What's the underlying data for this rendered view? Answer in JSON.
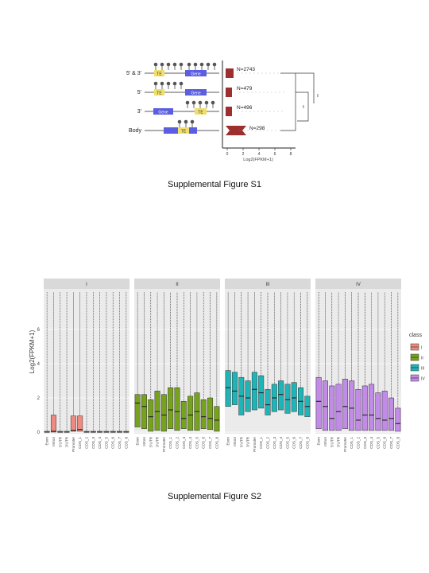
{
  "figure1": {
    "caption": "Supplemental Figure S1",
    "rows": [
      {
        "label": "5' & 3'",
        "count": "N=2743"
      },
      {
        "label": "5'",
        "count": "N=479"
      },
      {
        "label": "3'",
        "count": "N=496"
      },
      {
        "label": "Body",
        "count": "N=298"
      }
    ],
    "te_label": "TE",
    "gene_label": "Gene",
    "sig_label": "**",
    "xticks": [
      "0",
      "2",
      "4",
      "6",
      "8"
    ],
    "xlabel": "Log2(FPKM+1)"
  },
  "figure2": {
    "caption": "Supplemental Figure S2",
    "ylabel": "Log2(FPKM+1)",
    "legend_title": "class",
    "classes": [
      "I",
      "II",
      "III",
      "IV"
    ],
    "colors": [
      "#f08a80",
      "#76a21d",
      "#1fb5b8",
      "#c28be8"
    ],
    "yticks": [
      "0",
      "2",
      "4",
      "6"
    ],
    "chart_data": {
      "type": "box",
      "ylim": [
        0,
        8
      ],
      "categories": [
        "Exon",
        "Intron",
        "5'UTR",
        "3'UTR",
        "Promoter",
        "CDS_1",
        "CDS_2",
        "CDS_3",
        "CDS_4",
        "CDS_5",
        "CDS_6",
        "CDS_7",
        "CDS_8"
      ],
      "panels": [
        {
          "class": "I",
          "boxes": [
            {
              "q1": 0,
              "median": 0,
              "q3": 0.05
            },
            {
              "q1": 0,
              "median": 0.05,
              "q3": 1.0
            },
            {
              "q1": 0,
              "median": 0,
              "q3": 0.05
            },
            {
              "q1": 0,
              "median": 0,
              "q3": 0.05
            },
            {
              "q1": 0.05,
              "median": 0.1,
              "q3": 0.95
            },
            {
              "q1": 0.05,
              "median": 0.15,
              "q3": 0.95
            },
            {
              "q1": 0,
              "median": 0,
              "q3": 0.05
            },
            {
              "q1": 0,
              "median": 0,
              "q3": 0.05
            },
            {
              "q1": 0,
              "median": 0,
              "q3": 0.05
            },
            {
              "q1": 0,
              "median": 0,
              "q3": 0.05
            },
            {
              "q1": 0,
              "median": 0,
              "q3": 0.05
            },
            {
              "q1": 0,
              "median": 0,
              "q3": 0.05
            },
            {
              "q1": 0,
              "median": 0,
              "q3": 0.05
            }
          ]
        },
        {
          "class": "II",
          "boxes": [
            {
              "q1": 0.3,
              "median": 1.7,
              "q3": 2.2
            },
            {
              "q1": 0.2,
              "median": 1.5,
              "q3": 2.2
            },
            {
              "q1": 0.05,
              "median": 0.9,
              "q3": 1.9
            },
            {
              "q1": 0.1,
              "median": 1.2,
              "q3": 2.4
            },
            {
              "q1": 0.05,
              "median": 1.0,
              "q3": 2.2
            },
            {
              "q1": 0.2,
              "median": 1.3,
              "q3": 2.6
            },
            {
              "q1": 0.1,
              "median": 1.2,
              "q3": 2.6
            },
            {
              "q1": 0.2,
              "median": 0.8,
              "q3": 1.8
            },
            {
              "q1": 0.1,
              "median": 1.0,
              "q3": 2.1
            },
            {
              "q1": 0.1,
              "median": 1.2,
              "q3": 2.3
            },
            {
              "q1": 0.2,
              "median": 0.9,
              "q3": 1.9
            },
            {
              "q1": 0.15,
              "median": 0.8,
              "q3": 2.0
            },
            {
              "q1": 0.05,
              "median": 0.7,
              "q3": 1.5
            }
          ]
        },
        {
          "class": "III",
          "boxes": [
            {
              "q1": 1.5,
              "median": 2.6,
              "q3": 3.6
            },
            {
              "q1": 1.6,
              "median": 2.4,
              "q3": 3.5
            },
            {
              "q1": 1.0,
              "median": 2.1,
              "q3": 3.2
            },
            {
              "q1": 1.2,
              "median": 2.0,
              "q3": 3.0
            },
            {
              "q1": 1.3,
              "median": 2.5,
              "q3": 3.5
            },
            {
              "q1": 1.4,
              "median": 2.3,
              "q3": 3.3
            },
            {
              "q1": 1.0,
              "median": 1.6,
              "q3": 2.5
            },
            {
              "q1": 1.2,
              "median": 2.0,
              "q3": 2.8
            },
            {
              "q1": 1.3,
              "median": 2.2,
              "q3": 3.0
            },
            {
              "q1": 1.1,
              "median": 1.9,
              "q3": 2.8
            },
            {
              "q1": 1.2,
              "median": 2.0,
              "q3": 2.9
            },
            {
              "q1": 1.0,
              "median": 1.8,
              "q3": 2.6
            },
            {
              "q1": 0.9,
              "median": 1.5,
              "q3": 2.1
            }
          ]
        },
        {
          "class": "IV",
          "boxes": [
            {
              "q1": 0.2,
              "median": 1.8,
              "q3": 3.2
            },
            {
              "q1": 0.1,
              "median": 1.5,
              "q3": 3.0
            },
            {
              "q1": 0.1,
              "median": 0.8,
              "q3": 2.7
            },
            {
              "q1": 0.1,
              "median": 1.2,
              "q3": 2.8
            },
            {
              "q1": 0.2,
              "median": 1.5,
              "q3": 3.1
            },
            {
              "q1": 0.1,
              "median": 1.4,
              "q3": 3.0
            },
            {
              "q1": 0.1,
              "median": 0.7,
              "q3": 2.5
            },
            {
              "q1": 0.1,
              "median": 1.0,
              "q3": 2.7
            },
            {
              "q1": 0.1,
              "median": 1.0,
              "q3": 2.8
            },
            {
              "q1": 0.1,
              "median": 0.8,
              "q3": 2.3
            },
            {
              "q1": 0.1,
              "median": 0.7,
              "q3": 2.4
            },
            {
              "q1": 0.1,
              "median": 0.8,
              "q3": 2.0
            },
            {
              "q1": 0.05,
              "median": 0.5,
              "q3": 1.4
            }
          ]
        }
      ]
    }
  }
}
